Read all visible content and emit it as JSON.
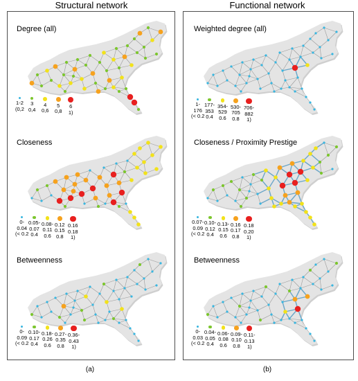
{
  "columns": {
    "a": {
      "title": "Structural network",
      "caption": "(a)"
    },
    "b": {
      "title": "Functional network",
      "caption": "(b)"
    }
  },
  "colors": {
    "level1": "#38b6e0",
    "level2": "#7cc62e",
    "level3": "#f2e21a",
    "level4": "#f6a21e",
    "level5": "#e8201f",
    "edge": "#9a9a9a",
    "edge_strong": "#6aa6c8",
    "land": "#e4e4e4",
    "land_shadow": "#cfcfcf"
  },
  "panels": {
    "a1": {
      "title": "Degree (all)",
      "legend": [
        [
          "1-2",
          "(0,2"
        ],
        [
          "3",
          "0,4"
        ],
        [
          "4",
          "0,6"
        ],
        [
          "5",
          "0,8"
        ],
        [
          "6",
          "1)"
        ]
      ]
    },
    "a2": {
      "title": "Closeness",
      "legend": [
        [
          "0-",
          "0.04",
          "(< 0.2"
        ],
        [
          "0.05-",
          "0.07",
          "0.4"
        ],
        [
          "0.08-",
          "0.11",
          "0.6"
        ],
        [
          "0.12",
          "0.15",
          "0.8"
        ],
        [
          "0.16",
          "0.18",
          "1)"
        ]
      ]
    },
    "a3": {
      "title": "Betweenness",
      "legend": [
        [
          "0-",
          "0.09",
          "(< 0.2"
        ],
        [
          "0.10-",
          "0.17",
          "0.4"
        ],
        [
          "0.18-",
          "0.26",
          "0.6"
        ],
        [
          "0.27-",
          "0.35",
          "0.8"
        ],
        [
          "0.36-",
          "0.43",
          "1)"
        ]
      ]
    },
    "b1": {
      "title": "Weighted degree (all)",
      "legend": [
        [
          "1-",
          "176",
          "(< 0.2"
        ],
        [
          "177-",
          "353",
          "0.4"
        ],
        [
          "354-",
          "529",
          "0.6"
        ],
        [
          "530-",
          "705",
          "0.8"
        ],
        [
          "706-",
          "882",
          "1)"
        ]
      ]
    },
    "b2": {
      "title": "Closeness / Proximity Prestige",
      "legend": [
        [
          "0.07-",
          "0.09",
          "(< 0.2"
        ],
        [
          "0.10-",
          "0.12",
          "0.4"
        ],
        [
          "0.13-",
          "0.15",
          "0.6"
        ],
        [
          "0.16",
          "0.17",
          "0.8"
        ],
        [
          "0.18",
          "0.20",
          "1)"
        ]
      ]
    },
    "b3": {
      "title": "Betweenness",
      "legend": [
        [
          "0-",
          "0.03",
          "(< 0.2"
        ],
        [
          "0.04-",
          "0.05",
          "0.4"
        ],
        [
          "0.06-",
          "0.08",
          "0.6"
        ],
        [
          "0.09-",
          "0.10",
          "0.8"
        ],
        [
          "0.11-",
          "0.13",
          "1)"
        ]
      ]
    }
  }
}
